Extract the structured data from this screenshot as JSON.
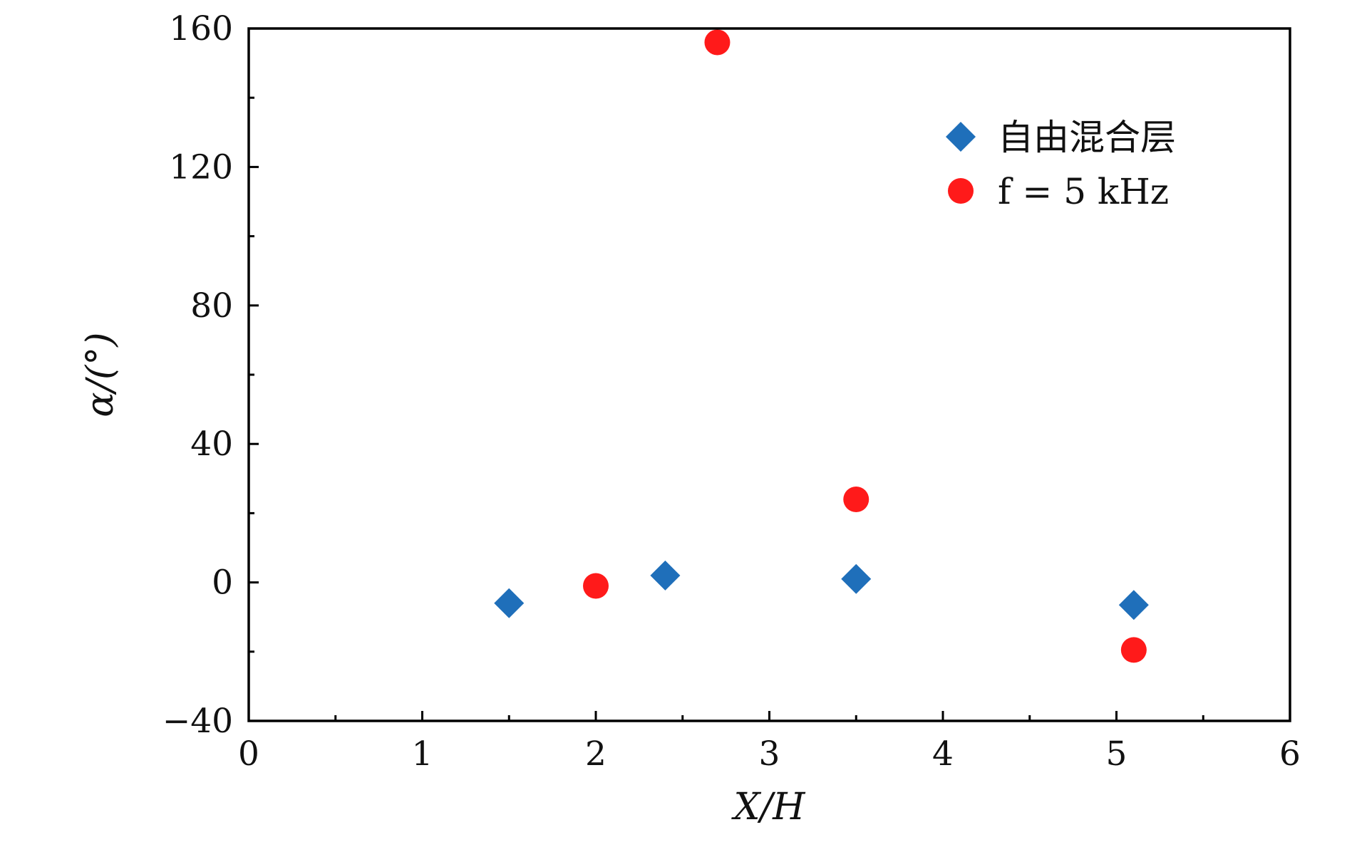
{
  "chart_data": {
    "type": "scatter",
    "title": "",
    "xlabel": "X/H",
    "ylabel": "α/(°)",
    "xlim": [
      0,
      6
    ],
    "ylim": [
      -40,
      160
    ],
    "x_ticks": [
      0,
      1,
      2,
      3,
      4,
      5,
      6
    ],
    "x_tick_labels": [
      "0",
      "1",
      "2",
      "3",
      "4",
      "5",
      "6"
    ],
    "y_ticks": [
      -40,
      0,
      40,
      80,
      120,
      160
    ],
    "y_tick_labels": [
      "−40",
      "0",
      "40",
      "80",
      "120",
      "160"
    ],
    "grid": false,
    "legend_position": "top-right",
    "series": [
      {
        "name": "自由混合层",
        "marker": "diamond",
        "color": "#1f6fba",
        "points": [
          {
            "x": 1.5,
            "y": -6
          },
          {
            "x": 2.4,
            "y": 2
          },
          {
            "x": 3.5,
            "y": 1
          },
          {
            "x": 5.1,
            "y": -6.5
          }
        ]
      },
      {
        "name": "f = 5 kHz",
        "marker": "circle",
        "color": "#ff1a1a",
        "points": [
          {
            "x": 2.0,
            "y": -1
          },
          {
            "x": 2.7,
            "y": 156
          },
          {
            "x": 3.5,
            "y": 24
          },
          {
            "x": 5.1,
            "y": -19.5
          }
        ]
      }
    ]
  }
}
